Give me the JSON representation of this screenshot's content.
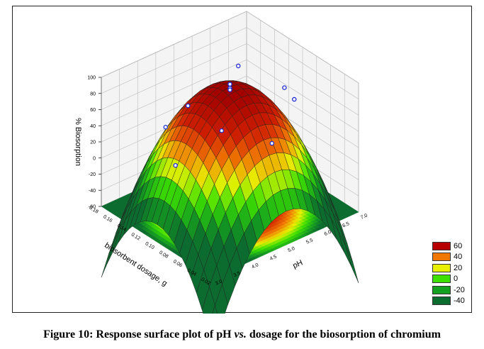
{
  "caption": {
    "prefix": "Figure 10: Response surface plot of pH ",
    "vs": "vs.",
    "suffix": " dosage for the biosorption of chromium"
  },
  "chart_data": {
    "type": "surface3d",
    "z_label": "% Biosorption",
    "x_label": "biosorbent dosage, g",
    "y_label": "pH",
    "z_ticks": [
      "100",
      "80",
      "60",
      "40",
      "20",
      "0",
      "-20",
      "-40",
      "-60"
    ],
    "zlim": [
      -60,
      100
    ],
    "x_ticks": [
      "0.02",
      "0.04",
      "0.06",
      "0.08",
      "0.10",
      "0.12",
      "0.14",
      "0.16",
      "0.18"
    ],
    "y_ticks": [
      "3.0",
      "3.5",
      "4.0",
      "4.5",
      "5.0",
      "5.5",
      "6.0",
      "6.5",
      "7.0"
    ],
    "xlim": [
      0.02,
      0.18
    ],
    "ylim": [
      3.0,
      7.0
    ],
    "surface_peak": {
      "x": 0.1,
      "y": 5.0,
      "z": 92
    },
    "legend": [
      {
        "label": "60",
        "color": "#b70000"
      },
      {
        "label": "40",
        "color": "#f07800"
      },
      {
        "label": "20",
        "color": "#e8f000"
      },
      {
        "label": "0",
        "color": "#3ee000"
      },
      {
        "label": "-20",
        "color": "#16a020"
      },
      {
        "label": "-40",
        "color": "#0c6b2e"
      }
    ],
    "observed_points": [
      {
        "x": 0.1,
        "y": 5.0,
        "z": 95
      },
      {
        "x": 0.1,
        "y": 5.0,
        "z": 90
      },
      {
        "x": 0.1,
        "y": 5.0,
        "z": 88
      },
      {
        "x": 0.06,
        "y": 4.0,
        "z": 80
      },
      {
        "x": 0.14,
        "y": 6.0,
        "z": 75
      },
      {
        "x": 0.06,
        "y": 6.0,
        "z": 78
      },
      {
        "x": 0.14,
        "y": 4.0,
        "z": 40
      },
      {
        "x": 0.04,
        "y": 5.0,
        "z": 55
      },
      {
        "x": 0.16,
        "y": 5.0,
        "z": 35
      },
      {
        "x": 0.1,
        "y": 3.5,
        "z": 25
      },
      {
        "x": 0.1,
        "y": 6.5,
        "z": 60
      }
    ]
  }
}
